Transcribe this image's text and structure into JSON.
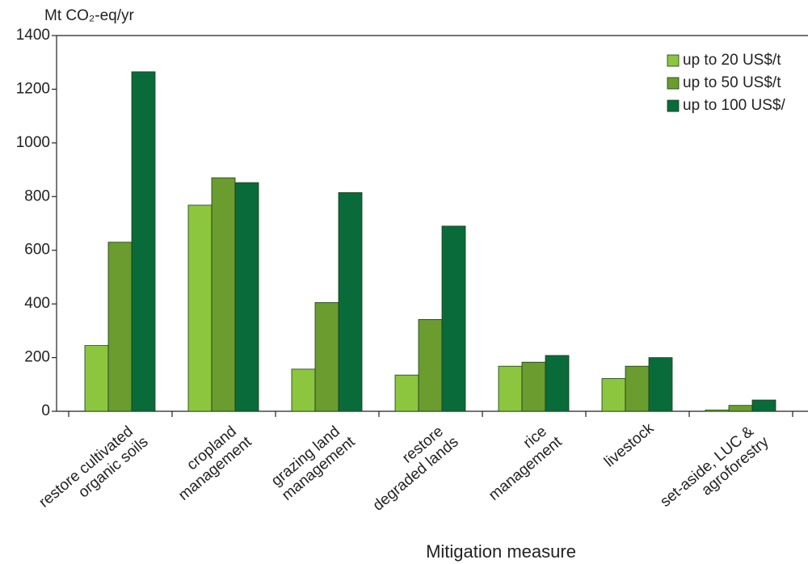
{
  "chart_data": {
    "type": "bar",
    "y_label": "Mt CO₂-eq/yr",
    "x_label": "Mitigation measure",
    "categories": [
      "restore cultivated\norganic soils",
      "cropland\nmanagement",
      "grazing land\nmanagement",
      "restore\ndegraded lands",
      "rice\nmanagement",
      "livestock",
      "set-aside, LUC &\nagroforestry"
    ],
    "series": [
      {
        "name": "up to 20 US$/t",
        "color": "#8cc63e",
        "values": [
          245,
          768,
          157,
          135,
          168,
          122,
          5
        ]
      },
      {
        "name": "up to 50 US$/t",
        "color": "#6b9c2f",
        "values": [
          630,
          870,
          405,
          342,
          183,
          168,
          22
        ]
      },
      {
        "name": "up to 100 US$/",
        "color": "#0a6b3a",
        "values": [
          1265,
          852,
          815,
          690,
          208,
          200,
          42
        ]
      }
    ],
    "ylim": [
      0,
      1400
    ],
    "yticks": [
      0,
      200,
      400,
      600,
      800,
      1000,
      1200,
      1400
    ]
  }
}
